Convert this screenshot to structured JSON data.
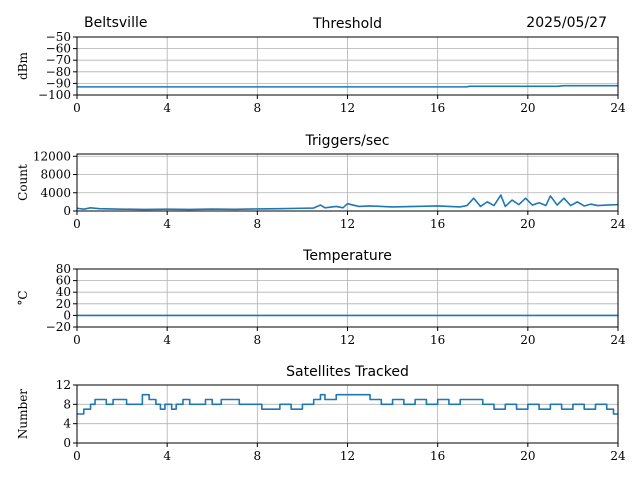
{
  "header": {
    "station": "Beltsville",
    "date": "2025/05/27"
  },
  "chart_data": [
    {
      "type": "line",
      "title": "Threshold",
      "ylabel": "dBm",
      "xlim": [
        0,
        24
      ],
      "ylim": [
        -100,
        -50
      ],
      "xticks": [
        0,
        4,
        8,
        12,
        16,
        20,
        24
      ],
      "yticks": [
        -100,
        -90,
        -80,
        -70,
        -60,
        -50
      ],
      "ytick_labels": [
        "−100",
        "−90",
        "−80",
        "−70",
        "−60",
        "−50"
      ],
      "grid": true,
      "color": "#1f77b4",
      "series": [
        {
          "x": [
            0,
            2,
            4,
            6,
            8,
            10,
            12,
            14,
            16,
            17.3,
            17.4,
            18.5,
            19.5,
            20.5,
            21.3,
            21.6,
            22.5,
            23.5,
            24
          ],
          "y": [
            -93,
            -93,
            -93,
            -93,
            -93,
            -93,
            -93,
            -93,
            -93,
            -93,
            -92.5,
            -92.5,
            -92.5,
            -92.5,
            -92.5,
            -92,
            -92,
            -92,
            -92
          ]
        }
      ]
    },
    {
      "type": "line",
      "title": "Triggers/sec",
      "ylabel": "Count",
      "xlim": [
        0,
        24
      ],
      "ylim": [
        0,
        12500
      ],
      "xticks": [
        0,
        4,
        8,
        12,
        16,
        20,
        24
      ],
      "yticks": [
        0,
        4000,
        8000,
        12000
      ],
      "ytick_labels": [
        "0",
        "4000",
        "8000",
        "12000"
      ],
      "grid": true,
      "color": "#1f77b4",
      "series": [
        {
          "x": [
            0,
            0.3,
            0.6,
            1.0,
            1.5,
            2,
            3,
            4,
            5,
            6,
            7,
            8,
            9,
            10,
            10.5,
            10.8,
            11,
            11.5,
            11.8,
            12,
            12.5,
            13,
            14,
            15,
            16,
            17,
            17.3,
            17.6,
            17.9,
            18.2,
            18.5,
            18.8,
            19,
            19.3,
            19.6,
            19.9,
            20.2,
            20.5,
            20.8,
            21,
            21.3,
            21.6,
            21.9,
            22.2,
            22.5,
            22.8,
            23.1,
            23.5,
            24
          ],
          "y": [
            600,
            400,
            700,
            500,
            450,
            400,
            350,
            400,
            350,
            420,
            380,
            450,
            500,
            600,
            650,
            1300,
            700,
            1000,
            700,
            1600,
            1000,
            1100,
            900,
            1000,
            1100,
            900,
            1200,
            2800,
            1000,
            2000,
            1200,
            3500,
            1000,
            2400,
            1400,
            2800,
            1300,
            1800,
            1200,
            3300,
            1300,
            2800,
            1200,
            2000,
            1100,
            1500,
            1200,
            1300,
            1400
          ]
        }
      ]
    },
    {
      "type": "line",
      "title": "Temperature",
      "ylabel": "°C",
      "xlim": [
        0,
        24
      ],
      "ylim": [
        -20,
        80
      ],
      "xticks": [
        0,
        4,
        8,
        12,
        16,
        20,
        24
      ],
      "yticks": [
        -20,
        0,
        20,
        40,
        60,
        80
      ],
      "ytick_labels": [
        "−20",
        "0",
        "20",
        "40",
        "60",
        "80"
      ],
      "grid": true,
      "color": "#1f77b4",
      "series": [
        {
          "x": [
            0,
            24
          ],
          "y": [
            0,
            0
          ]
        }
      ]
    },
    {
      "type": "line",
      "title": "Satellites Tracked",
      "ylabel": "Number",
      "xlim": [
        0,
        24
      ],
      "ylim": [
        0,
        12
      ],
      "xticks": [
        0,
        4,
        8,
        12,
        16,
        20,
        24
      ],
      "yticks": [
        0,
        4,
        8,
        12
      ],
      "ytick_labels": [
        "0",
        "4",
        "8",
        "12"
      ],
      "grid": true,
      "color": "#1f77b4",
      "series": [
        {
          "step": true,
          "x": [
            0,
            0.3,
            0.6,
            0.8,
            1.3,
            1.6,
            2.2,
            2.9,
            3.2,
            3.5,
            3.7,
            3.9,
            4.2,
            4.4,
            4.7,
            5.0,
            5.7,
            6.0,
            6.4,
            7.2,
            7.6,
            8.2,
            9.0,
            9.5,
            10.0,
            10.5,
            10.8,
            11.0,
            11.5,
            12.0,
            13.0,
            13.5,
            14.0,
            14.5,
            15.0,
            15.5,
            16.0,
            16.5,
            17.0,
            18.0,
            18.5,
            19.0,
            19.5,
            20.0,
            20.5,
            21.0,
            21.5,
            22.0,
            22.5,
            23.0,
            23.5,
            23.8,
            24
          ],
          "y": [
            6,
            7,
            8,
            9,
            8,
            9,
            8,
            10,
            9,
            8,
            7,
            8,
            7,
            8,
            9,
            8,
            9,
            8,
            9,
            8,
            8,
            7,
            8,
            7,
            8,
            9,
            10,
            9,
            10,
            10,
            9,
            8,
            9,
            8,
            9,
            8,
            9,
            8,
            9,
            8,
            7,
            8,
            7,
            8,
            7,
            8,
            7,
            8,
            7,
            8,
            7,
            6,
            6
          ]
        }
      ]
    }
  ]
}
